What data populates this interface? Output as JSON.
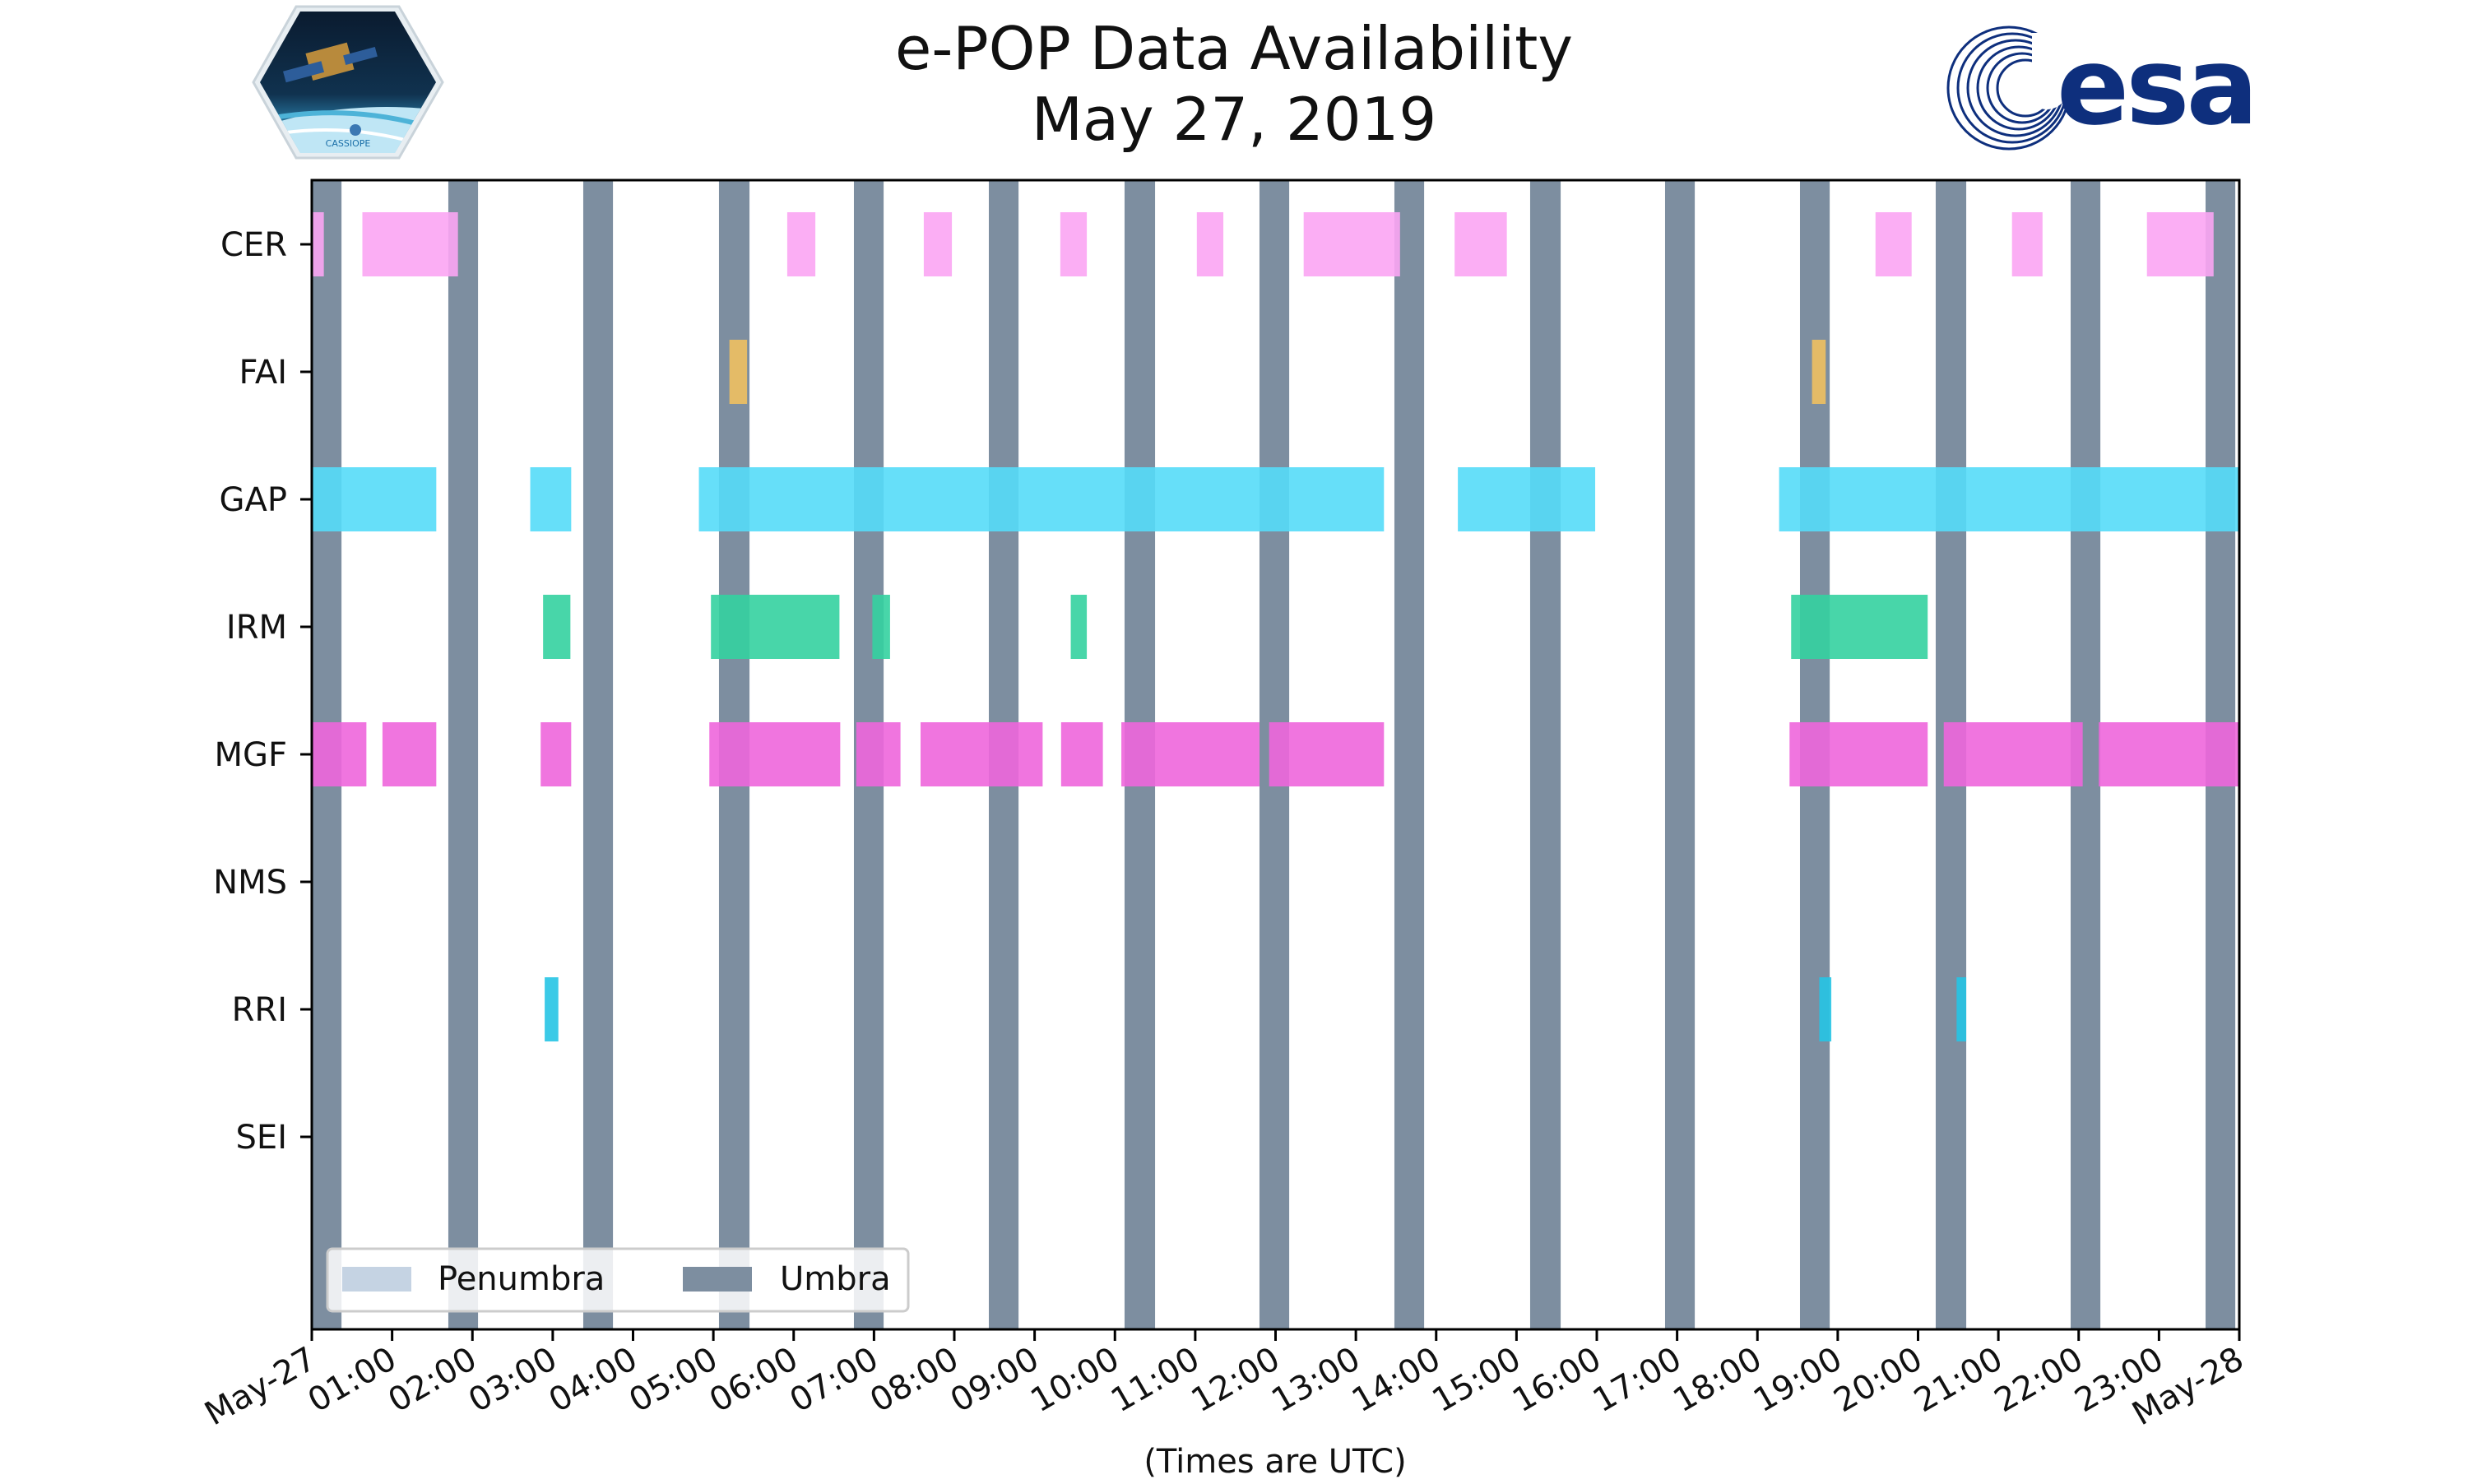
{
  "chart_data": {
    "type": "timeline",
    "title": "e-POP Data Availability",
    "subtitle": "May 27, 2019",
    "xlabel": "(Times are UTC)",
    "xlim": [
      0,
      24
    ],
    "x_tick_labels": [
      "May-27",
      "01:00",
      "02:00",
      "03:00",
      "04:00",
      "05:00",
      "06:00",
      "07:00",
      "08:00",
      "09:00",
      "10:00",
      "11:00",
      "12:00",
      "13:00",
      "14:00",
      "15:00",
      "16:00",
      "17:00",
      "18:00",
      "19:00",
      "20:00",
      "21:00",
      "22:00",
      "23:00",
      "May-28"
    ],
    "instruments": [
      "CER",
      "FAI",
      "GAP",
      "IRM",
      "MGF",
      "NMS",
      "RRI",
      "SEI"
    ],
    "colors": {
      "CER": "#fba5f3",
      "FAI": "#f0c060",
      "GAP": "#55dcf8",
      "IRM": "#34d2a0",
      "MGF": "#ee66dc",
      "RRI": "#26c4e4",
      "umbra": "#7d8ea0",
      "penumbra": "#c5d3e3"
    },
    "legend": {
      "placement": "lower-left",
      "entries": [
        "Penumbra",
        "Umbra"
      ]
    },
    "umbra_intervals": [
      [
        0.0,
        0.37
      ],
      [
        1.7,
        2.07
      ],
      [
        3.38,
        3.75
      ],
      [
        5.07,
        5.45
      ],
      [
        6.75,
        7.12
      ],
      [
        8.43,
        8.8
      ],
      [
        10.12,
        10.5
      ],
      [
        11.8,
        12.17
      ],
      [
        13.48,
        13.85
      ],
      [
        15.17,
        15.55
      ],
      [
        16.85,
        17.22
      ],
      [
        18.53,
        18.9
      ],
      [
        20.22,
        20.6
      ],
      [
        21.9,
        22.27
      ],
      [
        23.58,
        23.95
      ]
    ],
    "availability": [
      {
        "instrument": "CER",
        "intervals": [
          [
            0.0,
            0.15
          ],
          [
            0.63,
            1.82
          ],
          [
            5.92,
            6.27
          ],
          [
            7.62,
            7.97
          ],
          [
            9.32,
            9.65
          ],
          [
            11.02,
            11.35
          ],
          [
            12.35,
            13.55
          ],
          [
            14.23,
            14.88
          ],
          [
            19.47,
            19.92
          ],
          [
            21.17,
            21.55
          ],
          [
            22.85,
            23.68
          ]
        ]
      },
      {
        "instrument": "FAI",
        "intervals": [
          [
            5.2,
            5.42
          ],
          [
            18.68,
            18.85
          ]
        ]
      },
      {
        "instrument": "GAP",
        "intervals": [
          [
            0.0,
            1.55
          ],
          [
            2.72,
            3.23
          ],
          [
            4.82,
            13.35
          ],
          [
            14.27,
            15.98
          ],
          [
            18.27,
            24.0
          ]
        ]
      },
      {
        "instrument": "IRM",
        "intervals": [
          [
            2.88,
            3.22
          ],
          [
            4.97,
            6.57
          ],
          [
            6.98,
            7.2
          ],
          [
            9.45,
            9.65
          ],
          [
            18.42,
            20.12
          ]
        ]
      },
      {
        "instrument": "MGF",
        "intervals": [
          [
            0.0,
            0.68
          ],
          [
            0.88,
            1.55
          ],
          [
            2.85,
            3.23
          ],
          [
            4.95,
            6.58
          ],
          [
            6.78,
            7.33
          ],
          [
            7.58,
            9.1
          ],
          [
            9.33,
            9.85
          ],
          [
            10.08,
            11.8
          ],
          [
            11.92,
            13.35
          ],
          [
            18.4,
            20.12
          ],
          [
            20.32,
            22.05
          ],
          [
            22.25,
            24.0
          ]
        ]
      },
      {
        "instrument": "NMS",
        "intervals": []
      },
      {
        "instrument": "RRI",
        "intervals": [
          [
            2.9,
            3.07
          ],
          [
            18.77,
            18.92
          ],
          [
            20.48,
            20.6
          ]
        ]
      },
      {
        "instrument": "SEI",
        "intervals": []
      }
    ]
  },
  "logos": {
    "left": {
      "name": "CASSIOPE mission logo",
      "text": "CASSIOPE"
    },
    "right": {
      "name": "ESA logo",
      "text": "esa",
      "color": "#0e2f7d"
    }
  }
}
